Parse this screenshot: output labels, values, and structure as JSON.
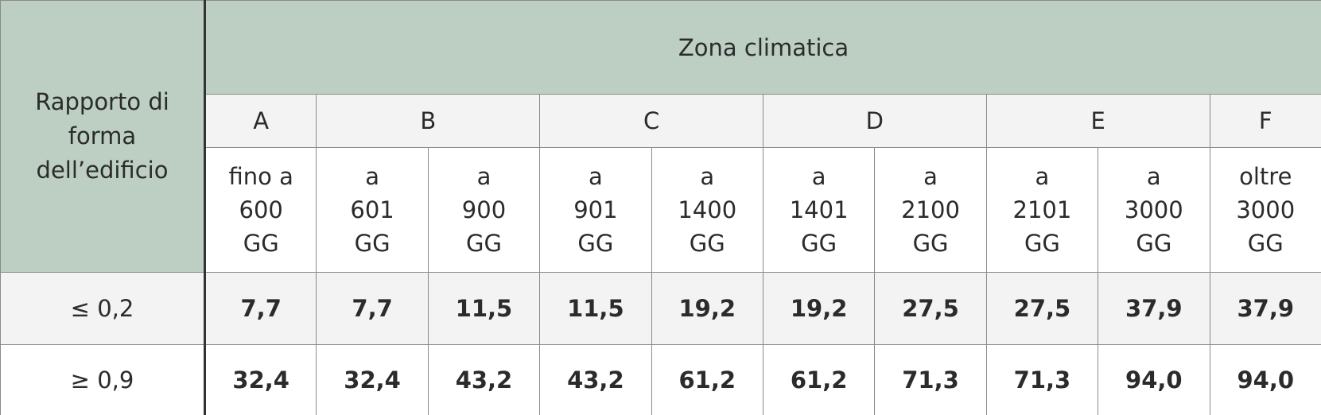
{
  "header": {
    "corner": "Rapporto di\nforma\ndell’edificio",
    "group": "Zona climatica",
    "zones": [
      "A",
      "B",
      "C",
      "D",
      "E",
      "F"
    ],
    "degrees": [
      "fino a\n600\nGG",
      "a\n601\nGG",
      "a\n900\nGG",
      "a\n901\nGG",
      "a\n1400\nGG",
      "a\n1401\nGG",
      "a\n2100\nGG",
      "a\n2101\nGG",
      "a\n3000\nGG",
      "oltre\n3000\nGG"
    ]
  },
  "table": {
    "rows": [
      {
        "label": "≤  0,2",
        "values": [
          "7,7",
          "7,7",
          "11,5",
          "11,5",
          "19,2",
          "19,2",
          "27,5",
          "27,5",
          "37,9",
          "37,9"
        ]
      },
      {
        "label": "≥ 0,9",
        "values": [
          "32,4",
          "32,4",
          "43,2",
          "43,2",
          "61,2",
          "61,2",
          "71,3",
          "71,3",
          "94,0",
          "94,0"
        ]
      }
    ]
  }
}
